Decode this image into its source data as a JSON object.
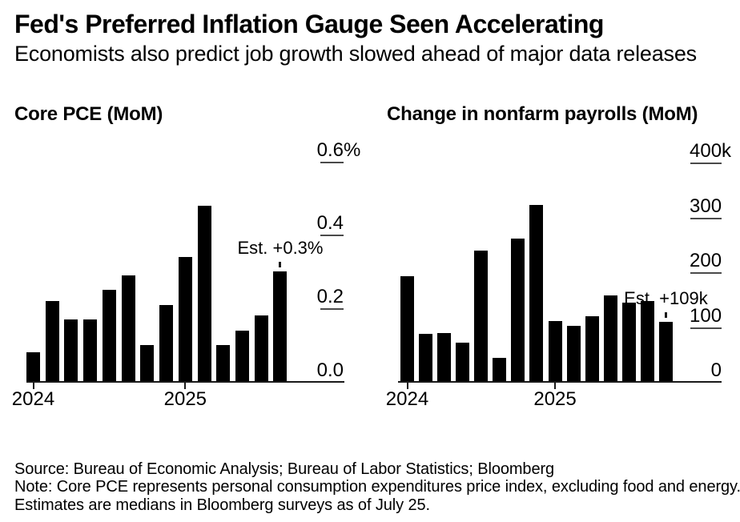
{
  "header": {
    "title": "Fed's Preferred Inflation Gauge Seen Accelerating",
    "subtitle": "Economists also predict job growth slowed ahead of major data releases"
  },
  "chart_data": [
    {
      "type": "bar",
      "title": "Core PCE (MoM)",
      "unit": "%",
      "bar_color": "#000000",
      "values": [
        0.08,
        0.22,
        0.17,
        0.17,
        0.25,
        0.29,
        0.1,
        0.21,
        0.34,
        0.48,
        0.1,
        0.14,
        0.18,
        0.3
      ],
      "ylim": [
        0,
        0.6
      ],
      "grid": "right-side tick dashes only",
      "y_ticks": [
        {
          "label": "0.6",
          "suffix": "%",
          "value": 0.6
        },
        {
          "label": "0.4",
          "suffix": "",
          "value": 0.4
        },
        {
          "label": "0.2",
          "suffix": "",
          "value": 0.2
        },
        {
          "label": "0.0",
          "suffix": "",
          "value": 0.0
        }
      ],
      "x_tick_labels": [
        {
          "label": "2024",
          "bar_index": 0
        },
        {
          "label": "2025",
          "bar_index": 8
        }
      ],
      "annotation": {
        "text": "Est. +0.3%",
        "bar_index": 13,
        "value": 0.3
      }
    },
    {
      "type": "bar",
      "title": "Change in nonfarm payrolls (MoM)",
      "unit": "k",
      "bar_color": "#000000",
      "values": [
        193,
        87,
        89,
        71,
        240,
        44,
        261,
        323,
        111,
        102,
        120,
        158,
        144,
        147,
        109
      ],
      "ylim": [
        0,
        400
      ],
      "grid": "right-side tick dashes only",
      "y_ticks": [
        {
          "label": "400",
          "suffix": "k",
          "value": 400
        },
        {
          "label": "300",
          "suffix": "",
          "value": 300
        },
        {
          "label": "200",
          "suffix": "",
          "value": 200
        },
        {
          "label": "100",
          "suffix": "",
          "value": 100
        },
        {
          "label": "0",
          "suffix": "",
          "value": 0
        }
      ],
      "x_tick_labels": [
        {
          "label": "2024",
          "bar_index": 0
        },
        {
          "label": "2025",
          "bar_index": 8
        }
      ],
      "annotation": {
        "text": "Est. +109k",
        "bar_index": 14,
        "value": 109
      }
    }
  ],
  "footer": {
    "lines": [
      "Source: Bureau of Economic Analysis; Bureau of Labor Statistics; Bloomberg",
      "Note: Core PCE represents personal consumption expenditures price index, excluding food and energy.",
      "Estimates are medians in Bloomberg surveys as of July 25."
    ]
  }
}
